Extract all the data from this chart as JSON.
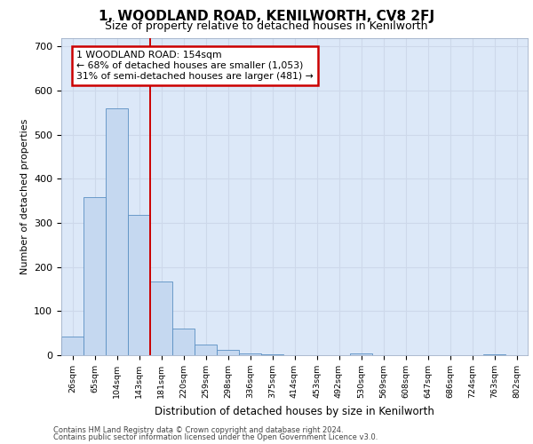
{
  "title": "1, WOODLAND ROAD, KENILWORTH, CV8 2FJ",
  "subtitle": "Size of property relative to detached houses in Kenilworth",
  "xlabel": "Distribution of detached houses by size in Kenilworth",
  "ylabel": "Number of detached properties",
  "categories": [
    "26sqm",
    "65sqm",
    "104sqm",
    "143sqm",
    "181sqm",
    "220sqm",
    "259sqm",
    "298sqm",
    "336sqm",
    "375sqm",
    "414sqm",
    "453sqm",
    "492sqm",
    "530sqm",
    "569sqm",
    "608sqm",
    "647sqm",
    "686sqm",
    "724sqm",
    "763sqm",
    "802sqm"
  ],
  "bar_heights": [
    42,
    358,
    560,
    318,
    168,
    60,
    25,
    12,
    5,
    2,
    0,
    0,
    0,
    5,
    0,
    0,
    0,
    0,
    0,
    3,
    0
  ],
  "bar_color": "#c5d8f0",
  "bar_edge_color": "#5a8fc2",
  "property_line_x": 3.5,
  "annotation_text": "1 WOODLAND ROAD: 154sqm\n← 68% of detached houses are smaller (1,053)\n31% of semi-detached houses are larger (481) →",
  "annotation_box_color": "#ffffff",
  "annotation_box_edge": "#cc0000",
  "vline_color": "#cc0000",
  "grid_color": "#cdd8ea",
  "background_color": "#dce8f8",
  "ylim": [
    0,
    720
  ],
  "yticks": [
    0,
    100,
    200,
    300,
    400,
    500,
    600,
    700
  ],
  "footer_line1": "Contains HM Land Registry data © Crown copyright and database right 2024.",
  "footer_line2": "Contains public sector information licensed under the Open Government Licence v3.0."
}
